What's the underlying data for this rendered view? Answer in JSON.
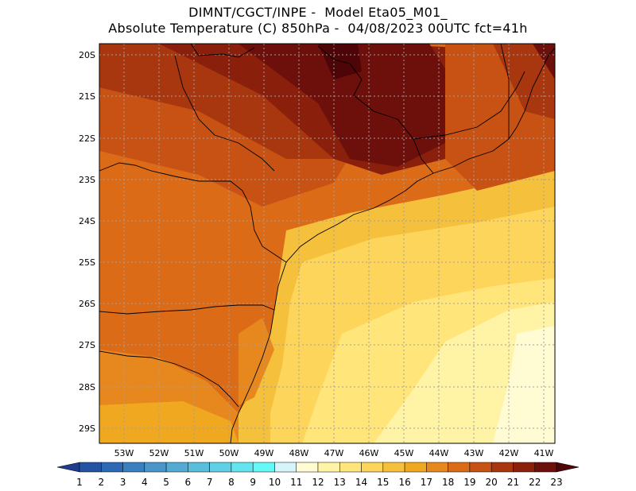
{
  "header": {
    "line1": "DIMNT/CGCT/INPE -  Model Eta05_M01_",
    "line2": "Absolute Temperature (C) 850hPa -  04/08/2023 00UTC fct=41h"
  },
  "map": {
    "lat_labels": [
      "20S",
      "21S",
      "22S",
      "23S",
      "24S",
      "25S",
      "26S",
      "27S",
      "28S",
      "29S"
    ],
    "lon_labels": [
      "53W",
      "52W",
      "51W",
      "50W",
      "49W",
      "48W",
      "47W",
      "46W",
      "45W",
      "44W",
      "43W",
      "42W",
      "41W"
    ],
    "lat_range": [
      -29.4,
      -19.8
    ],
    "lon_range": [
      -53.6,
      -40.6
    ]
  },
  "colorbar": {
    "labels": [
      "1",
      "2",
      "3",
      "4",
      "5",
      "6",
      "7",
      "8",
      "9",
      "10",
      "11",
      "12",
      "13",
      "14",
      "15",
      "16",
      "17",
      "18",
      "19",
      "20",
      "21",
      "22",
      "23"
    ],
    "colors": [
      "#1f3d8c",
      "#2553a3",
      "#2d69b4",
      "#3a80c0",
      "#4a96c9",
      "#53aad2",
      "#5bbddc",
      "#5fd0e6",
      "#63e4ef",
      "#66f7f7",
      "#d6f4fb",
      "#fffbd2",
      "#fff4a6",
      "#ffe57a",
      "#fcd55a",
      "#f5c03c",
      "#f0a820",
      "#e7881e",
      "#dc6b18",
      "#c85214",
      "#a8370f",
      "#8a200c",
      "#6d0f0a",
      "#4d0508"
    ]
  }
}
